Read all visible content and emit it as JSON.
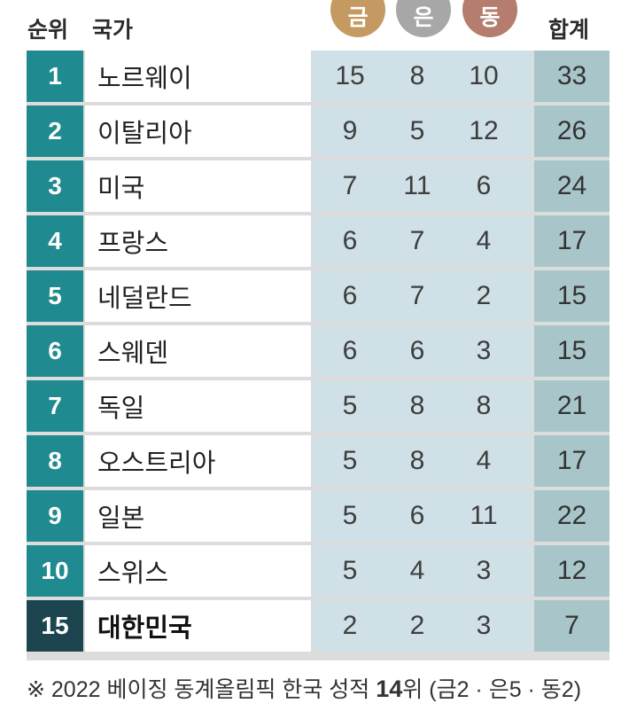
{
  "header": {
    "rank_label": "순위",
    "country_label": "국가",
    "gold_label": "금",
    "silver_label": "은",
    "bronze_label": "동",
    "total_label": "합계"
  },
  "colors": {
    "rank_teal": "#1f8a8f",
    "korea_rank": "#1c4550",
    "medal_col_bg": "#cfe0e6",
    "total_col_bg": "#a8c6c9",
    "gold": "#c59a62",
    "silver": "#a7a7a7",
    "bronze": "#b47d6d"
  },
  "chart_data": {
    "type": "table",
    "columns": [
      "순위",
      "국가",
      "금",
      "은",
      "동",
      "합계"
    ],
    "rows": [
      {
        "rank": "1",
        "country": "노르웨이",
        "gold": "15",
        "silver": "8",
        "bronze": "10",
        "total": "33"
      },
      {
        "rank": "2",
        "country": "이탈리아",
        "gold": "9",
        "silver": "5",
        "bronze": "12",
        "total": "26"
      },
      {
        "rank": "3",
        "country": "미국",
        "gold": "7",
        "silver": "11",
        "bronze": "6",
        "total": "24"
      },
      {
        "rank": "4",
        "country": "프랑스",
        "gold": "6",
        "silver": "7",
        "bronze": "4",
        "total": "17"
      },
      {
        "rank": "5",
        "country": "네덜란드",
        "gold": "6",
        "silver": "7",
        "bronze": "2",
        "total": "15"
      },
      {
        "rank": "6",
        "country": "스웨덴",
        "gold": "6",
        "silver": "6",
        "bronze": "3",
        "total": "15"
      },
      {
        "rank": "7",
        "country": "독일",
        "gold": "5",
        "silver": "8",
        "bronze": "8",
        "total": "21"
      },
      {
        "rank": "8",
        "country": "오스트리아",
        "gold": "5",
        "silver": "8",
        "bronze": "4",
        "total": "17"
      },
      {
        "rank": "9",
        "country": "일본",
        "gold": "5",
        "silver": "6",
        "bronze": "11",
        "total": "22"
      },
      {
        "rank": "10",
        "country": "스위스",
        "gold": "5",
        "silver": "4",
        "bronze": "3",
        "total": "12"
      },
      {
        "rank": "15",
        "country": "대한민국",
        "gold": "2",
        "silver": "2",
        "bronze": "3",
        "total": "7",
        "highlight": true
      }
    ]
  },
  "footnote": {
    "prefix": "※ 2022 베이징 동계올림픽 한국 성적 ",
    "bold": "14",
    "suffix": "위 (금2 · 은5 · 동2)"
  }
}
